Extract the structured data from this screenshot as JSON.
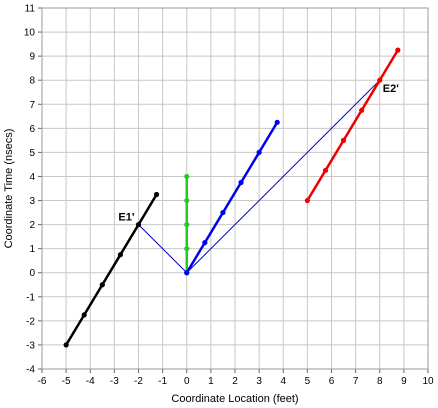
{
  "chart_data": {
    "type": "scatter",
    "title": "",
    "xlabel": "Coordinate Location (feet)",
    "ylabel": "Coordinate Time (nsecs)",
    "xlim": [
      -6,
      10
    ],
    "ylim": [
      -4,
      11
    ],
    "xticks": [
      "-6",
      "-5",
      "-4",
      "-3",
      "-2",
      "-1",
      "0",
      "1",
      "2",
      "3",
      "4",
      "5",
      "6",
      "7",
      "8",
      "9",
      "10"
    ],
    "yticks": [
      "-4",
      "-3",
      "-2",
      "-1",
      "0",
      "1",
      "2",
      "3",
      "4",
      "5",
      "6",
      "7",
      "8",
      "9",
      "10",
      "11"
    ],
    "grid": true,
    "series": [
      {
        "color": "#000000",
        "points": [
          [
            -5,
            -3
          ],
          [
            -4.25,
            -1.75
          ],
          [
            -3.5,
            -0.5
          ],
          [
            -2.75,
            0.75
          ],
          [
            -2,
            2
          ],
          [
            -1.25,
            3.25
          ]
        ]
      },
      {
        "color": "#22cc22",
        "points": [
          [
            0,
            0
          ],
          [
            0,
            1
          ],
          [
            0,
            2
          ],
          [
            0,
            3
          ],
          [
            0,
            4
          ]
        ]
      },
      {
        "color": "#0000ee",
        "points": [
          [
            0,
            0
          ],
          [
            0.75,
            1.25
          ],
          [
            1.5,
            2.5
          ],
          [
            2.25,
            3.75
          ],
          [
            3,
            5
          ],
          [
            3.75,
            6.25
          ]
        ]
      },
      {
        "color": "#ee0000",
        "points": [
          [
            5,
            3
          ],
          [
            5.75,
            4.25
          ],
          [
            6.5,
            5.5
          ],
          [
            7.25,
            6.75
          ],
          [
            8,
            8
          ],
          [
            8.75,
            9.25
          ]
        ]
      }
    ],
    "connectors": {
      "color": "#0000cc",
      "segments": [
        [
          [
            -2,
            2
          ],
          [
            0,
            0
          ]
        ],
        [
          [
            0,
            0
          ],
          [
            8,
            8
          ]
        ]
      ]
    },
    "annotations": [
      {
        "text": "E1'",
        "x": -2,
        "y": 2,
        "position": "upper-left"
      },
      {
        "text": "E2'",
        "x": 8,
        "y": 8,
        "position": "lower-right"
      }
    ]
  }
}
